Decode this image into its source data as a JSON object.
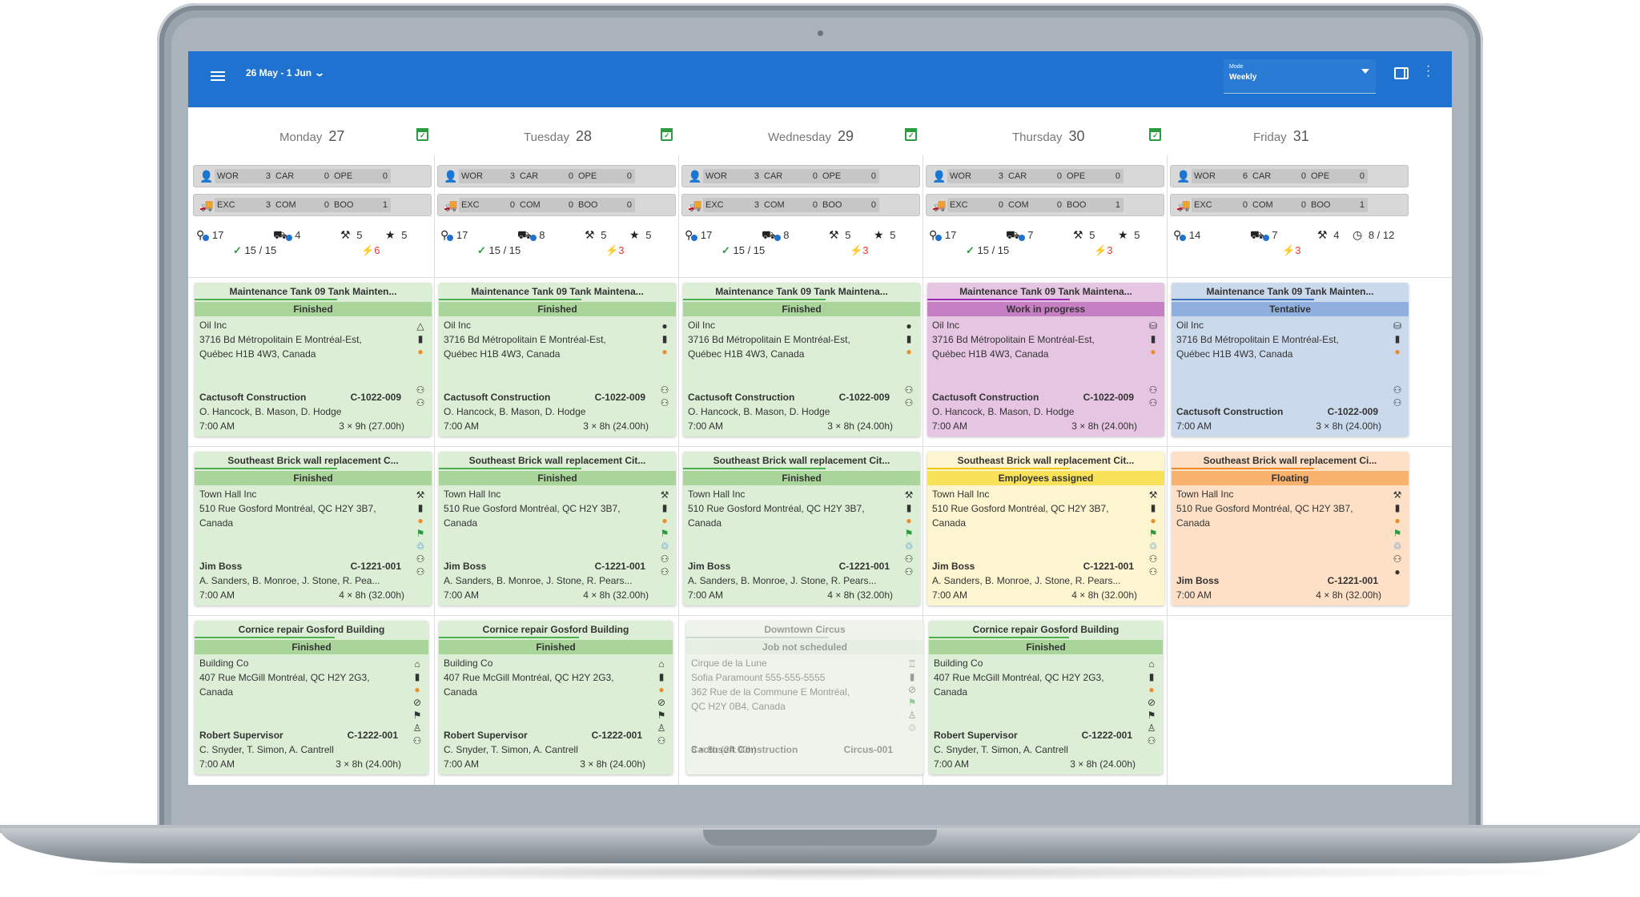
{
  "header": {
    "date_range": "26 May - 1 Jun",
    "mode_label": "Mode",
    "mode_value": "Weekly",
    "colors": {
      "topbar": "#1f72cf"
    }
  },
  "days": [
    {
      "name": "Monday",
      "num": "27"
    },
    {
      "name": "Tuesday",
      "num": "28"
    },
    {
      "name": "Wednesday",
      "num": "29"
    },
    {
      "name": "Thursday",
      "num": "30"
    },
    {
      "name": "Friday",
      "num": "31"
    }
  ],
  "summaries": [
    {
      "r1": [
        [
          "WOR",
          "3"
        ],
        [
          "CAR",
          "0"
        ],
        [
          "OPE",
          "0"
        ]
      ],
      "r2": [
        [
          "EXC",
          "3"
        ],
        [
          "COM",
          "0"
        ],
        [
          "BOO",
          "1"
        ]
      ],
      "s": [
        "17",
        "4",
        "5",
        "5"
      ],
      "ok": "15 / 15",
      "alert": "6"
    },
    {
      "r1": [
        [
          "WOR",
          "3"
        ],
        [
          "CAR",
          "0"
        ],
        [
          "OPE",
          "0"
        ]
      ],
      "r2": [
        [
          "EXC",
          "0"
        ],
        [
          "COM",
          "0"
        ],
        [
          "BOO",
          "0"
        ]
      ],
      "s": [
        "17",
        "8",
        "5",
        "5"
      ],
      "ok": "15 / 15",
      "alert": "3"
    },
    {
      "r1": [
        [
          "WOR",
          "3"
        ],
        [
          "CAR",
          "0"
        ],
        [
          "OPE",
          "0"
        ]
      ],
      "r2": [
        [
          "EXC",
          "3"
        ],
        [
          "COM",
          "0"
        ],
        [
          "BOO",
          "0"
        ]
      ],
      "s": [
        "17",
        "8",
        "5",
        "5"
      ],
      "ok": "15 / 15",
      "alert": "3"
    },
    {
      "r1": [
        [
          "WOR",
          "3"
        ],
        [
          "CAR",
          "0"
        ],
        [
          "OPE",
          "0"
        ]
      ],
      "r2": [
        [
          "EXC",
          "0"
        ],
        [
          "COM",
          "0"
        ],
        [
          "BOO",
          "1"
        ]
      ],
      "s": [
        "17",
        "7",
        "5",
        "5"
      ],
      "ok": "15 / 15",
      "alert": "3"
    },
    {
      "r1": [
        [
          "WOR",
          "6"
        ],
        [
          "CAR",
          "0"
        ],
        [
          "OPE",
          "0"
        ]
      ],
      "r2": [
        [
          "EXC",
          "0"
        ],
        [
          "COM",
          "0"
        ],
        [
          "BOO",
          "1"
        ]
      ],
      "s": [
        "14",
        "7",
        "4",
        "8 / 12"
      ],
      "ok": "",
      "alert": "3"
    }
  ],
  "rows": [
    {
      "cards": [
        {
          "title": "Maintenance Tank 09 Tank Mainten...",
          "status": "Finished",
          "client": "Oil Inc",
          "addr1": "3716 Bd Métropolitain E Montréal-Est,",
          "addr2": "Québec H1B 4W3, Canada",
          "addr3": "",
          "company": "Cactusoft Construction",
          "code": "C-1022-009",
          "crew": "O. Hancock, B. Mason, D. Hodge",
          "time": "7:00 AM",
          "dur": "3 × 9h (27.00h)",
          "icons": [
            "△",
            "▮",
            "●",
            "",
            "",
            "⚇",
            "⚇"
          ],
          "theme": "green"
        },
        {
          "title": "Maintenance Tank 09 Tank Maintena...",
          "status": "Finished",
          "client": "Oil Inc",
          "addr1": "3716 Bd Métropolitain E Montréal-Est,",
          "addr2": "Québec H1B 4W3, Canada",
          "addr3": "",
          "company": "Cactusoft Construction",
          "code": "C-1022-009",
          "crew": "O. Hancock, B. Mason, D. Hodge",
          "time": "7:00 AM",
          "dur": "3 × 8h (24.00h)",
          "icons": [
            "●",
            "▮",
            "●",
            "",
            "",
            "⚇",
            "⚇"
          ],
          "theme": "green"
        },
        {
          "title": "Maintenance Tank 09 Tank Maintena...",
          "status": "Finished",
          "client": "Oil Inc",
          "addr1": "3716 Bd Métropolitain E Montréal-Est,",
          "addr2": "Québec H1B 4W3, Canada",
          "addr3": "",
          "company": "Cactusoft Construction",
          "code": "C-1022-009",
          "crew": "O. Hancock, B. Mason, D. Hodge",
          "time": "7:00 AM",
          "dur": "3 × 8h (24.00h)",
          "icons": [
            "●",
            "▮",
            "●",
            "",
            "",
            "⚇",
            "⚇"
          ],
          "theme": "green"
        },
        {
          "title": "Maintenance Tank 09 Tank Maintena...",
          "status": "Work in progress",
          "client": "Oil Inc",
          "addr1": "3716 Bd Métropolitain E Montréal-Est,",
          "addr2": "Québec H1B 4W3, Canada",
          "addr3": "",
          "company": "Cactusoft Construction",
          "code": "C-1022-009",
          "crew": "O. Hancock, B. Mason, D. Hodge",
          "time": "7:00 AM",
          "dur": "3 × 8h (24.00h)",
          "icons": [
            "⛁",
            "▮",
            "●",
            "",
            "",
            "⚇",
            "⚇"
          ],
          "theme": "purple"
        },
        {
          "title": "Maintenance Tank 09 Tank Mainten...",
          "status": "Tentative",
          "client": "Oil Inc",
          "addr1": "3716 Bd Métropolitain E Montréal-Est,",
          "addr2": "Québec H1B 4W3, Canada",
          "addr3": "",
          "company": "Cactusoft Construction",
          "code": "C-1022-009",
          "crew": "",
          "time": "7:00 AM",
          "dur": "3 × 8h (24.00h)",
          "icons": [
            "⛁",
            "▮",
            "●",
            "",
            "",
            "⚇",
            "⚇"
          ],
          "theme": "blue"
        }
      ]
    },
    {
      "cards": [
        {
          "title": "Southeast Brick wall replacement C...",
          "status": "Finished",
          "client": "Town Hall Inc",
          "addr1": "510 Rue Gosford Montréal, QC H2Y 3B7,",
          "addr2": "Canada",
          "addr3": "",
          "company": "Jim Boss",
          "code": "C-1221-001",
          "crew": "A. Sanders, B. Monroe, J. Stone, R. Pea...",
          "time": "7:00 AM",
          "dur": "4 × 8h (32.00h)",
          "icons": [
            "⚒",
            "▮",
            "●",
            "⚑",
            "♲",
            "⚇",
            "⚇"
          ],
          "theme": "green"
        },
        {
          "title": "Southeast Brick wall replacement Cit...",
          "status": "Finished",
          "client": "Town Hall Inc",
          "addr1": "510 Rue Gosford Montréal, QC H2Y 3B7,",
          "addr2": "Canada",
          "addr3": "",
          "company": "Jim Boss",
          "code": "C-1221-001",
          "crew": "A. Sanders, B. Monroe, J. Stone, R. Pears...",
          "time": "7:00 AM",
          "dur": "4 × 8h (32.00h)",
          "icons": [
            "⚒",
            "▮",
            "●",
            "⚑",
            "♲",
            "⚇",
            "⚇"
          ],
          "theme": "green"
        },
        {
          "title": "Southeast Brick wall replacement Cit...",
          "status": "Finished",
          "client": "Town Hall Inc",
          "addr1": "510 Rue Gosford Montréal, QC H2Y 3B7,",
          "addr2": "Canada",
          "addr3": "",
          "company": "Jim Boss",
          "code": "C-1221-001",
          "crew": "A. Sanders, B. Monroe, J. Stone, R. Pears...",
          "time": "7:00 AM",
          "dur": "4 × 8h (32.00h)",
          "icons": [
            "⚒",
            "▮",
            "●",
            "⚑",
            "♲",
            "⚇",
            "⚇"
          ],
          "theme": "green"
        },
        {
          "title": "Southeast Brick wall replacement Cit...",
          "status": "Employees assigned",
          "client": "Town Hall Inc",
          "addr1": "510 Rue Gosford Montréal, QC H2Y 3B7,",
          "addr2": "Canada",
          "addr3": "",
          "company": "Jim Boss",
          "code": "C-1221-001",
          "crew": "A. Sanders, B. Monroe, J. Stone, R. Pears...",
          "time": "7:00 AM",
          "dur": "4 × 8h (32.00h)",
          "icons": [
            "⚒",
            "▮",
            "●",
            "⚑",
            "♲",
            "⚇",
            "⚇"
          ],
          "theme": "yellow"
        },
        {
          "title": "Southeast Brick wall replacement Ci...",
          "status": "Floating",
          "client": "Town Hall Inc",
          "addr1": "510 Rue Gosford Montréal, QC H2Y 3B7,",
          "addr2": "Canada",
          "addr3": "",
          "company": "Jim Boss",
          "code": "C-1221-001",
          "crew": "",
          "time": "7:00 AM",
          "dur": "4 × 8h (32.00h)",
          "icons": [
            "⚒",
            "▮",
            "●",
            "⚑",
            "♲",
            "⚇",
            "●"
          ],
          "theme": "orange"
        }
      ]
    },
    {
      "cards": [
        {
          "title": "Cornice repair Gosford Building",
          "status": "Finished",
          "client": "Building Co",
          "addr1": "407 Rue McGill Montréal, QC H2Y 2G3,",
          "addr2": "Canada",
          "addr3": "",
          "company": "Robert Supervisor",
          "code": "C-1222-001",
          "crew": "C. Snyder, T. Simon, A. Cantrell",
          "time": "7:00 AM",
          "dur": "3 × 8h (24.00h)",
          "icons": [
            "⌂",
            "▮",
            "●",
            "⊘",
            "⚑",
            "♙",
            "⚇"
          ],
          "theme": "green"
        },
        {
          "title": "Cornice repair Gosford Building",
          "status": "Finished",
          "client": "Building Co",
          "addr1": "407 Rue McGill Montréal, QC H2Y 2G3,",
          "addr2": "Canada",
          "addr3": "",
          "company": "Robert Supervisor",
          "code": "C-1222-001",
          "crew": "C. Snyder, T. Simon, A. Cantrell",
          "time": "7:00 AM",
          "dur": "3 × 8h (24.00h)",
          "icons": [
            "⌂",
            "▮",
            "●",
            "⊘",
            "⚑",
            "♙",
            "⚇"
          ],
          "theme": "green"
        },
        {
          "title": "Downtown Circus",
          "status": "Job not scheduled",
          "client": "Cirque de la Lune",
          "addr1": "Sofia Paramount 555-555-5555",
          "addr2": "362 Rue de la Commune E Montréal,",
          "addr3": "QC H2Y 0B4, Canada",
          "company": "Cactusoft Construction",
          "code": "Circus-001",
          "crew": "3 × 8h (24.00h)",
          "time": "",
          "dur": "",
          "icons": [
            "♖",
            "▮",
            "⊘",
            "⚑",
            "♙",
            "♲",
            ""
          ],
          "theme": "faded"
        },
        {
          "title": "Cornice repair Gosford Building",
          "status": "Finished",
          "client": "Building Co",
          "addr1": "407 Rue McGill Montréal, QC H2Y 2G3,",
          "addr2": "Canada",
          "addr3": "",
          "company": "Robert Supervisor",
          "code": "C-1222-001",
          "crew": "C. Snyder, T. Simon, A. Cantrell",
          "time": "7:00 AM",
          "dur": "3 × 8h (24.00h)",
          "icons": [
            "⌂",
            "▮",
            "●",
            "⊘",
            "⚑",
            "♙",
            "⚇"
          ],
          "theme": "green"
        }
      ]
    }
  ],
  "themes": {
    "green": {
      "bg": "#dcefd6",
      "status": "#a9d59b",
      "bar": "#4caf50"
    },
    "purple": {
      "bg": "#e6c5e3",
      "status": "#c77fc3",
      "bar": "#9c27b0"
    },
    "blue": {
      "bg": "#cbd9ec",
      "status": "#8fb0de",
      "bar": "#3f6fc0"
    },
    "yellow": {
      "bg": "#fdf5cf",
      "status": "#f8e25a",
      "bar": "#f3c400"
    },
    "orange": {
      "bg": "#fde0c6",
      "status": "#f8b26d",
      "bar": "#f08a24"
    },
    "faded": {
      "bg": "#eef4ec",
      "status": "#dde6da",
      "bar": "#cfd8cc"
    }
  }
}
